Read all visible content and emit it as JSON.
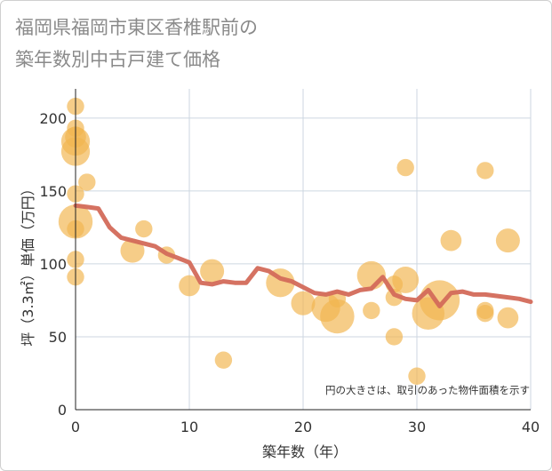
{
  "title_line1": "福岡県福岡市東区香椎駅前の",
  "title_line2": "築年数別中古戸建て価格",
  "chart_data": {
    "type": "scatter",
    "title": "福岡県福岡市東区香椎駅前の築年数別中古戸建て価格",
    "xlabel": "築年数（年）",
    "ylabel": "坪（3.3㎡）単価（万円）",
    "xlim": [
      0,
      40
    ],
    "ylim": [
      0,
      220
    ],
    "xticks": [
      0,
      10,
      20,
      30,
      40
    ],
    "yticks": [
      0,
      50,
      100,
      150,
      200
    ],
    "annotation": "円の大きさは、取引のあった物件面積を示す",
    "colors": {
      "points": "#f2b54f",
      "line": "#d36a5a",
      "grid": "#cdd6e0",
      "axis_text": "#333333"
    },
    "scatter": [
      {
        "x": 0,
        "y": 208,
        "size": 1
      },
      {
        "x": 0,
        "y": 193,
        "size": 1
      },
      {
        "x": 0,
        "y": 187,
        "size": 2
      },
      {
        "x": 0,
        "y": 184,
        "size": 5
      },
      {
        "x": 0,
        "y": 177,
        "size": 5
      },
      {
        "x": 0,
        "y": 148,
        "size": 1
      },
      {
        "x": 0,
        "y": 129,
        "size": 8
      },
      {
        "x": 0,
        "y": 124,
        "size": 1
      },
      {
        "x": 0,
        "y": 103,
        "size": 1
      },
      {
        "x": 0,
        "y": 91,
        "size": 1
      },
      {
        "x": 1,
        "y": 156,
        "size": 1
      },
      {
        "x": 5,
        "y": 109,
        "size": 3
      },
      {
        "x": 6,
        "y": 124,
        "size": 1
      },
      {
        "x": 8,
        "y": 106,
        "size": 1
      },
      {
        "x": 10,
        "y": 85,
        "size": 2
      },
      {
        "x": 12,
        "y": 95,
        "size": 3
      },
      {
        "x": 13,
        "y": 34,
        "size": 1
      },
      {
        "x": 18,
        "y": 87,
        "size": 5
      },
      {
        "x": 20,
        "y": 73,
        "size": 3
      },
      {
        "x": 22,
        "y": 70,
        "size": 5
      },
      {
        "x": 23,
        "y": 76,
        "size": 1
      },
      {
        "x": 23,
        "y": 64,
        "size": 8
      },
      {
        "x": 26,
        "y": 92,
        "size": 5
      },
      {
        "x": 26,
        "y": 68,
        "size": 1
      },
      {
        "x": 28,
        "y": 86,
        "size": 1
      },
      {
        "x": 28,
        "y": 77,
        "size": 1
      },
      {
        "x": 28,
        "y": 50,
        "size": 1
      },
      {
        "x": 29,
        "y": 166,
        "size": 1
      },
      {
        "x": 29,
        "y": 89,
        "size": 4
      },
      {
        "x": 30,
        "y": 23,
        "size": 1
      },
      {
        "x": 31,
        "y": 66,
        "size": 7
      },
      {
        "x": 32,
        "y": 75,
        "size": 12
      },
      {
        "x": 33,
        "y": 116,
        "size": 2
      },
      {
        "x": 36,
        "y": 164,
        "size": 1
      },
      {
        "x": 36,
        "y": 68,
        "size": 1
      },
      {
        "x": 36,
        "y": 66,
        "size": 1
      },
      {
        "x": 38,
        "y": 116,
        "size": 3
      },
      {
        "x": 38,
        "y": 63,
        "size": 2
      }
    ],
    "trend_line": {
      "x": [
        0,
        1,
        2,
        3,
        4,
        5,
        6,
        7,
        8,
        9,
        10,
        11,
        12,
        13,
        14,
        15,
        16,
        17,
        18,
        19,
        20,
        21,
        22,
        23,
        24,
        25,
        26,
        27,
        28,
        29,
        30,
        31,
        32,
        33,
        34,
        35,
        36,
        37,
        38,
        39,
        40
      ],
      "y": [
        140,
        139,
        138,
        125,
        118,
        116,
        114,
        112,
        107,
        104,
        101,
        87,
        86,
        88,
        87,
        87,
        97,
        95,
        90,
        88,
        84,
        80,
        79,
        81,
        79,
        82,
        83,
        91,
        79,
        76,
        75,
        82,
        71,
        80,
        81,
        79,
        79,
        78,
        77,
        76,
        74
      ]
    }
  }
}
